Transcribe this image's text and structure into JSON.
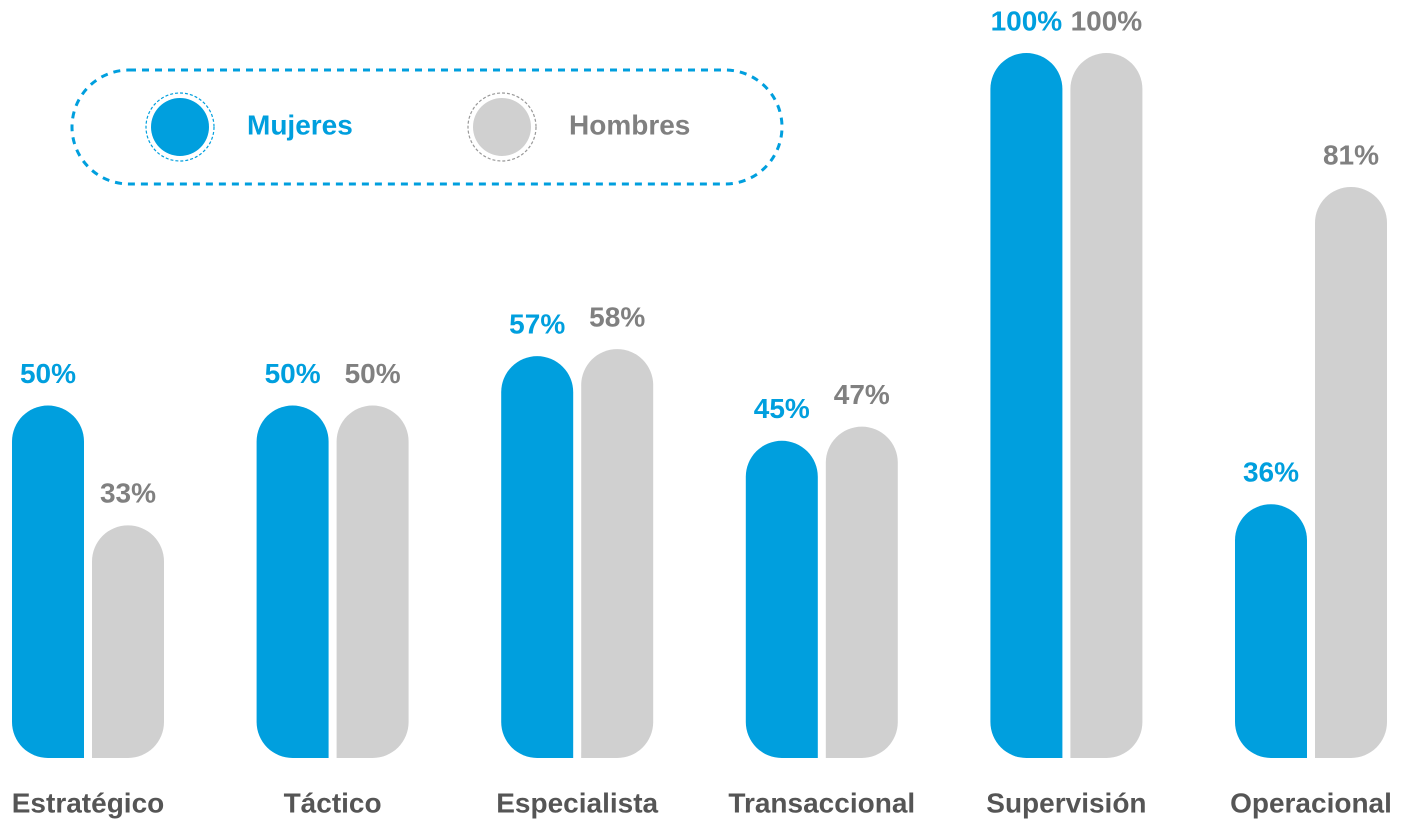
{
  "chart_data": {
    "type": "bar",
    "categories": [
      "Estratégico",
      "Táctico",
      "Especialista",
      "Transaccional",
      "Supervisión",
      "Operacional"
    ],
    "series": [
      {
        "name": "Mujeres",
        "color": "#009fde",
        "values": [
          50,
          50,
          57,
          45,
          100,
          36
        ],
        "value_labels": [
          "50%",
          "50%",
          "57%",
          "45%",
          "100%",
          "36%"
        ]
      },
      {
        "name": "Hombres",
        "color": "#d0d0d0",
        "values": [
          33,
          50,
          58,
          47,
          100,
          81
        ],
        "value_labels": [
          "33%",
          "50%",
          "58%",
          "47%",
          "100%",
          "81%"
        ]
      }
    ]
  }
}
